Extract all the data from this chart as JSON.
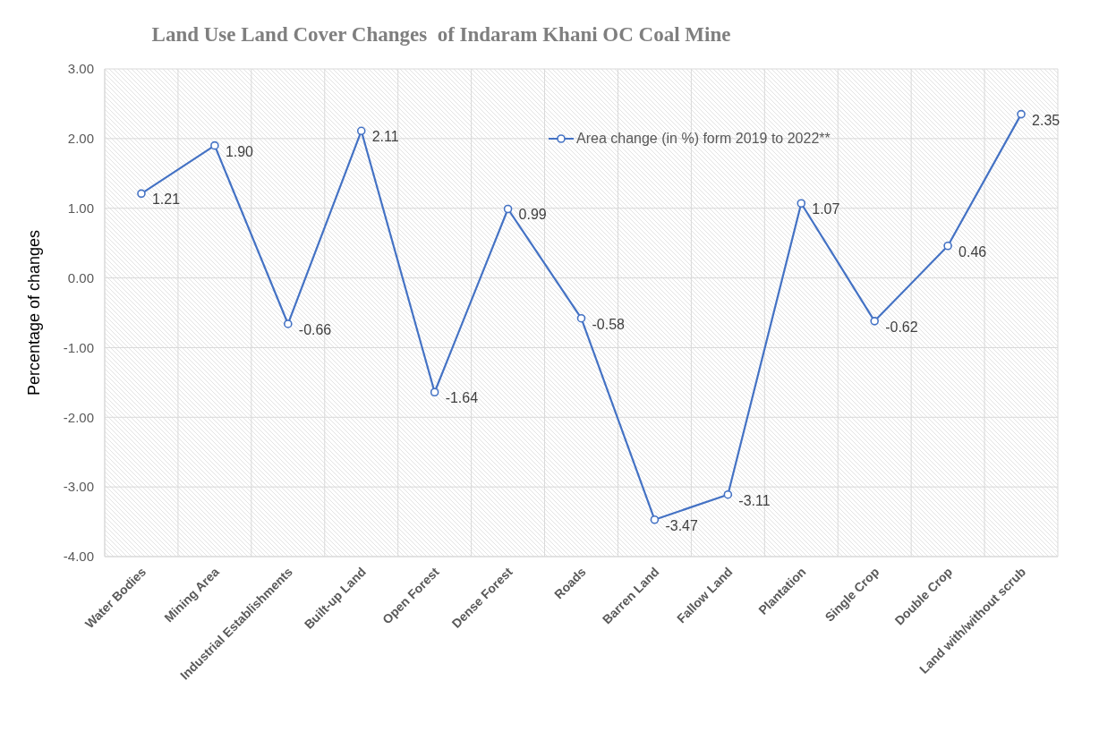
{
  "chart_data": {
    "type": "line",
    "title": "Land Use Land Cover Changes  of Indaram Khani OC Coal Mine",
    "ylabel": "Percentage of changes",
    "categories": [
      "Water Bodies",
      "Mining Area",
      "Industrial Establishments",
      "Built-up Land",
      "Open Forest",
      "Dense Forest",
      "Roads",
      "Barren Land",
      "Fallow Land",
      "Plantation",
      "Single Crop",
      "Double Crop",
      "Land with/without scrub"
    ],
    "series": [
      {
        "name": "Area change (in %) form 2019 to 2022**",
        "color": "#4472c4",
        "values": [
          1.21,
          1.9,
          -0.66,
          2.11,
          -1.64,
          0.99,
          -0.58,
          -3.47,
          -3.11,
          1.07,
          -0.62,
          0.46,
          2.35
        ],
        "value_labels": [
          "1.21",
          "1.90",
          "-0.66",
          "2.11",
          "-1.64",
          "0.99",
          "-0.58",
          "-3.47",
          "-3.11",
          "1.07",
          "-0.62",
          "0.46",
          "2.35"
        ]
      }
    ],
    "ylim": [
      -4,
      3
    ],
    "yticks": [
      {
        "value": -4,
        "label": "-4.00"
      },
      {
        "value": -3,
        "label": "-3.00"
      },
      {
        "value": -2,
        "label": "-2.00"
      },
      {
        "value": -1,
        "label": "-1.00"
      },
      {
        "value": 0,
        "label": "0.00"
      },
      {
        "value": 1,
        "label": "1.00"
      },
      {
        "value": 2,
        "label": "2.00"
      },
      {
        "value": 3,
        "label": "3.00"
      }
    ],
    "grid": true,
    "legend": "top right",
    "marker": "circle",
    "line_style": "solid"
  }
}
